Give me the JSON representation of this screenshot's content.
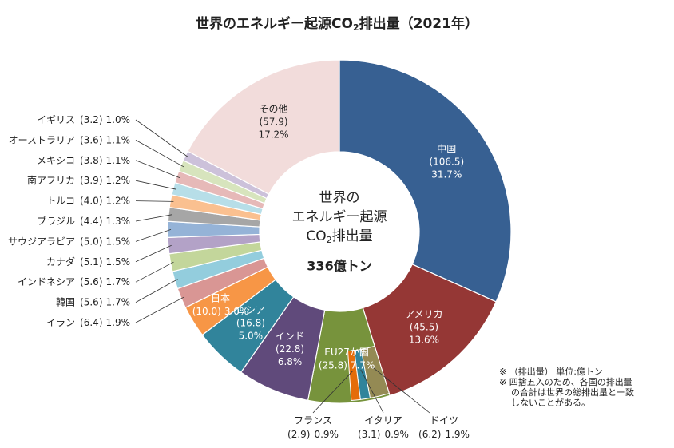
{
  "chart_data": {
    "type": "donut",
    "title": {
      "prefix": "世界のエネルギー起源CO",
      "sub": "2",
      "suffix": "排出量（2021年）"
    },
    "center": {
      "lines": [
        "世界の",
        "エネルギー起源"
      ],
      "prefix": "CO",
      "sub": "2",
      "suffix": "排出量",
      "total_label": "336億トン"
    },
    "categories": [
      "中国",
      "アメリカ",
      "EU27か国",
      "インド",
      "ロシア",
      "日本",
      "イラン",
      "韓国",
      "インドネシア",
      "カナダ",
      "サウジアラビア",
      "ブラジル",
      "トルコ",
      "南アフリカ",
      "メキシコ",
      "オーストラリア",
      "イギリス",
      "その他"
    ],
    "values": [
      106.5,
      45.5,
      25.8,
      22.8,
      16.8,
      10.0,
      6.4,
      5.6,
      5.6,
      5.1,
      5.0,
      4.4,
      4.0,
      3.9,
      3.8,
      3.6,
      3.2,
      57.9
    ],
    "value_labels": [
      "(106.5)",
      "(45.5)",
      "(25.8)",
      "(22.8)",
      "(16.8)",
      "(10.0)",
      "(6.4)",
      "(5.6)",
      "(5.6)",
      "(5.1)",
      "(5.0)",
      "(4.4)",
      "(4.0)",
      "(3.9)",
      "(3.8)",
      "(3.6)",
      "(3.2)",
      "(57.9)"
    ],
    "percent_labels": [
      "31.7%",
      "13.6%",
      "7.7%",
      "6.8%",
      "5.0%",
      "3.0%",
      "1.9%",
      "1.7%",
      "1.7%",
      "1.5%",
      "1.5%",
      "1.3%",
      "1.2%",
      "1.2%",
      "1.1%",
      "1.1%",
      "1.0%",
      "17.2%"
    ],
    "colors": [
      "#376092",
      "#953735",
      "#77933c",
      "#604a7b",
      "#31849b",
      "#f79646",
      "#d99694",
      "#93cddd",
      "#c3d69b",
      "#b3a2c7",
      "#95b3d7",
      "#a6a6a6",
      "#fac090",
      "#b7dee8",
      "#e6b9b8",
      "#d7e4bd",
      "#ccc1da",
      "#f2dcdb"
    ],
    "sub_slices": {
      "categories": [
        "ドイツ",
        "イタリア",
        "フランス"
      ],
      "values": [
        6.2,
        3.1,
        2.9
      ],
      "value_labels": [
        "(6.2)",
        "(3.1)",
        "(2.9)"
      ],
      "percent_labels": [
        "1.9%",
        "0.9%",
        "0.9%"
      ],
      "colors": [
        "#948a54",
        "#31849b",
        "#e46c0a"
      ]
    },
    "notes": [
      "※ （排出量） 単位:億トン",
      "※ 四捨五入のため、各国の排出量",
      "の合計は世界の総排出量と一致",
      "しないことがある。"
    ]
  }
}
